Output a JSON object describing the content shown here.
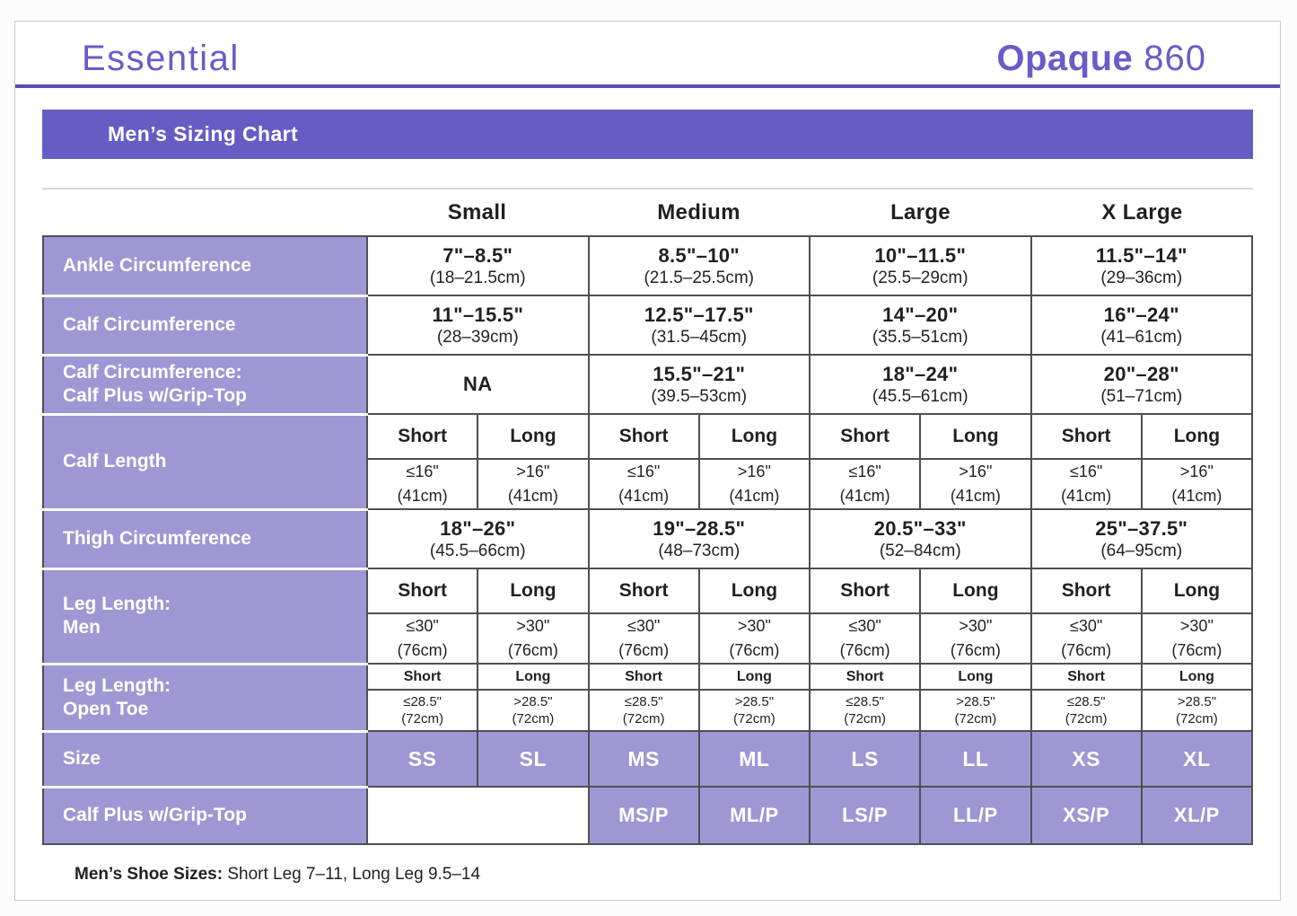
{
  "colors": {
    "accent_purple": "#675cc4",
    "brand_purple": "#6a5bc8",
    "lavender": "#9d98d3",
    "grid_border": "#4f4f52"
  },
  "header": {
    "collection": "Essential",
    "product_name": "Opaque",
    "product_number": "860"
  },
  "banner": {
    "title": "Men’s Sizing Chart"
  },
  "table": {
    "column_headers": [
      "Small",
      "Medium",
      "Large",
      "X Large"
    ],
    "rows": {
      "ankle": {
        "label": "Ankle Circumference",
        "values": [
          {
            "in": "7\"–8.5\"",
            "cm": "(18–21.5cm)"
          },
          {
            "in": "8.5\"–10\"",
            "cm": "(21.5–25.5cm)"
          },
          {
            "in": "10\"–11.5\"",
            "cm": "(25.5–29cm)"
          },
          {
            "in": "11.5\"–14\"",
            "cm": "(29–36cm)"
          }
        ]
      },
      "calf": {
        "label": "Calf Circumference",
        "values": [
          {
            "in": "11\"–15.5\"",
            "cm": "(28–39cm)"
          },
          {
            "in": "12.5\"–17.5\"",
            "cm": "(31.5–45cm)"
          },
          {
            "in": "14\"–20\"",
            "cm": "(35.5–51cm)"
          },
          {
            "in": "16\"–24\"",
            "cm": "(41–61cm)"
          }
        ]
      },
      "calf_plus": {
        "label_line1": "Calf Circumference:",
        "label_line2": "Calf Plus w/Grip-Top",
        "values": [
          {
            "in": "NA",
            "cm": ""
          },
          {
            "in": "15.5\"–21\"",
            "cm": "(39.5–53cm)"
          },
          {
            "in": "18\"–24\"",
            "cm": "(45.5–61cm)"
          },
          {
            "in": "20\"–28\"",
            "cm": "(51–71cm)"
          }
        ]
      },
      "calf_length": {
        "label": "Calf Length",
        "short_label": "Short",
        "long_label": "Long",
        "short": {
          "v": "≤16\"",
          "cm": "(41cm)"
        },
        "long": {
          "v": ">16\"",
          "cm": "(41cm)"
        }
      },
      "thigh": {
        "label": "Thigh Circumference",
        "values": [
          {
            "in": "18\"–26\"",
            "cm": "(45.5–66cm)"
          },
          {
            "in": "19\"–28.5\"",
            "cm": "(48–73cm)"
          },
          {
            "in": "20.5\"–33\"",
            "cm": "(52–84cm)"
          },
          {
            "in": "25\"–37.5\"",
            "cm": "(64–95cm)"
          }
        ]
      },
      "leg_men": {
        "label_line1": "Leg Length:",
        "label_line2": "Men",
        "short_label": "Short",
        "long_label": "Long",
        "short": {
          "v": "≤30\"",
          "cm": "(76cm)"
        },
        "long": {
          "v": ">30\"",
          "cm": "(76cm)"
        }
      },
      "leg_open": {
        "label_line1": "Leg Length:",
        "label_line2": "Open Toe",
        "short_label": "Short",
        "long_label": "Long",
        "short": {
          "v": "≤28.5\"",
          "cm": "(72cm)"
        },
        "long": {
          "v": ">28.5\"",
          "cm": "(72cm)"
        }
      },
      "size": {
        "label": "Size",
        "values": [
          "SS",
          "SL",
          "MS",
          "ML",
          "LS",
          "LL",
          "XS",
          "XL"
        ]
      },
      "grip_top": {
        "label": "Calf Plus w/Grip-Top",
        "values": [
          "MS/P",
          "ML/P",
          "LS/P",
          "LL/P",
          "XS/P",
          "XL/P"
        ]
      }
    }
  },
  "footer": {
    "bold": "Men’s Shoe Sizes:",
    "text": " Short Leg 7–11, Long Leg 9.5–14"
  }
}
